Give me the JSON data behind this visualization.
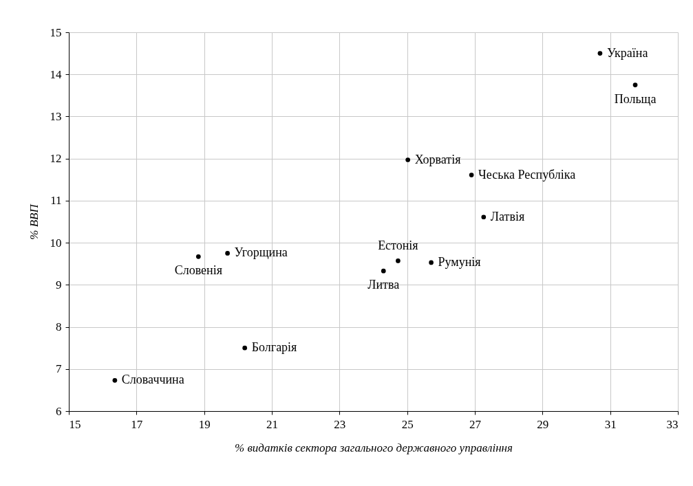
{
  "chart_data": {
    "type": "scatter",
    "xlabel": "% видатків сектора загального державного управління",
    "ylabel": "% ВВП",
    "x": [
      30.7,
      31.74,
      25.02,
      26.9,
      27.26,
      24.73,
      25.71,
      24.3,
      19.69,
      18.83,
      20.2,
      16.36
    ],
    "series": [
      {
        "color": "#000000",
        "values": [
          14.5,
          13.75,
          11.97,
          11.61,
          10.61,
          9.57,
          9.53,
          9.33,
          9.75,
          9.67,
          7.5,
          6.73
        ]
      }
    ],
    "annotations": [
      {
        "text": "Україна",
        "x": 30.7,
        "y": 14.5
      },
      {
        "text": "Польща",
        "x": 31.74,
        "y": 13.75
      },
      {
        "text": "Хорватія",
        "x": 25.02,
        "y": 11.97
      },
      {
        "text": "Чеська Республіка",
        "x": 26.9,
        "y": 11.61
      },
      {
        "text": "Латвія",
        "x": 27.26,
        "y": 10.61
      },
      {
        "text": "Естонія",
        "x": 24.73,
        "y": 9.57
      },
      {
        "text": "Румунія",
        "x": 25.71,
        "y": 9.53
      },
      {
        "text": "Литва",
        "x": 24.3,
        "y": 9.33
      },
      {
        "text": "Угорщина",
        "x": 19.69,
        "y": 9.75
      },
      {
        "text": "Словенія",
        "x": 18.83,
        "y": 9.67
      },
      {
        "text": "Болгарія",
        "x": 20.2,
        "y": 7.5
      },
      {
        "text": "Словаччина",
        "x": 16.36,
        "y": 6.73
      }
    ],
    "xlim": [
      15,
      33
    ],
    "xticks": [
      15,
      17,
      19,
      21,
      23,
      25,
      27,
      29,
      31,
      33
    ],
    "ylim": [
      6,
      15
    ],
    "yticks": [
      6,
      7,
      8,
      9,
      10,
      11,
      12,
      13,
      14,
      15
    ],
    "grid": true,
    "marker": "circle"
  }
}
